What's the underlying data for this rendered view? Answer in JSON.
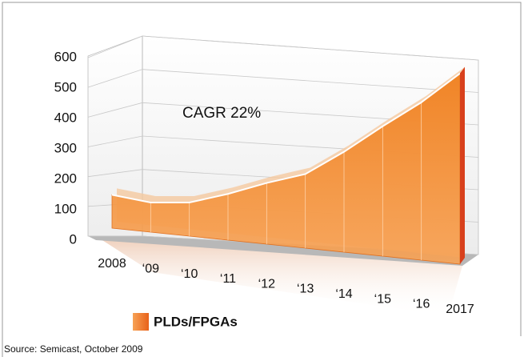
{
  "chart_data": {
    "type": "area",
    "categories": [
      "2008",
      "‘09",
      "‘10",
      "‘11",
      "‘12",
      "‘13",
      "‘14",
      "‘15",
      "‘16",
      "2017"
    ],
    "series": [
      {
        "name": "PLDs/FPGAs",
        "color": "#f28a2e",
        "values": [
          135,
          115,
          125,
          165,
          210,
          245,
          320,
          400,
          470,
          550
        ]
      }
    ],
    "ylim": [
      0,
      600
    ],
    "yticks": [
      0,
      100,
      200,
      300,
      400,
      500,
      600
    ],
    "grid": true,
    "annotation": "CAGR 22%",
    "source": "Source: Semicast, October 2009"
  }
}
